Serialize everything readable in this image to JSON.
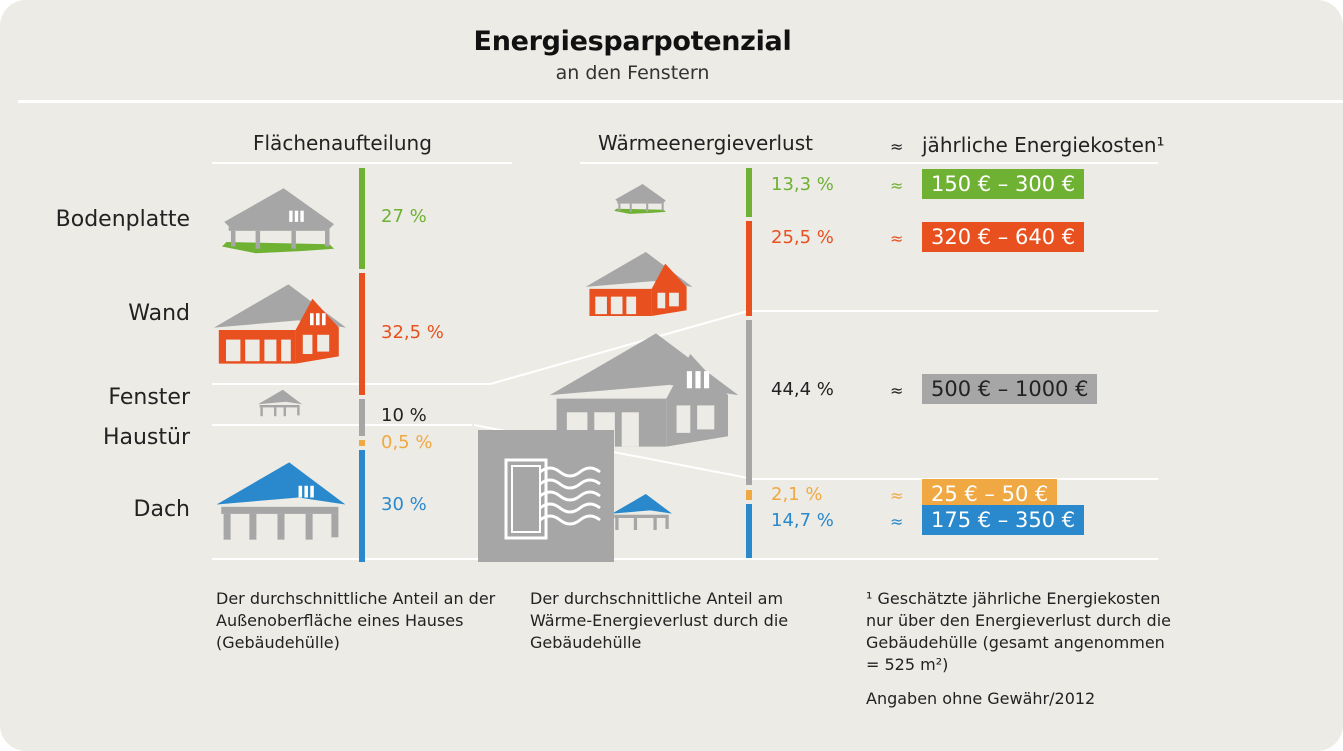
{
  "title": "Energiesparpotenzial",
  "subtitle": "an den Fenstern",
  "headers": {
    "area": "Flächenaufteilung",
    "loss": "Wärmeenergieverlust",
    "approx": "≈",
    "cost": "jährliche Energiekosten¹"
  },
  "colors": {
    "Bodenplatte": "#6fb133",
    "Wand": "#e8501f",
    "Fenster": "#a6a6a6",
    "Haustür": "#f0a843",
    "Dach": "#2989cc"
  },
  "chart_data": {
    "type": "bar",
    "categories": [
      "Bodenplatte",
      "Wand",
      "Fenster",
      "Haustür",
      "Dach"
    ],
    "series": [
      {
        "name": "Flächenaufteilung",
        "values": [
          27,
          32.5,
          10,
          0.5,
          30
        ],
        "labels": [
          "27 %",
          "32,5 %",
          "10 %",
          "0,5 %",
          "30 %"
        ]
      },
      {
        "name": "Wärmeenergieverlust",
        "values": [
          13.3,
          25.5,
          44.4,
          2.1,
          14.7
        ],
        "labels": [
          "13,3 %",
          "25,5 %",
          "44,4 %",
          "2,1 %",
          "14,7 %"
        ]
      }
    ],
    "loss_order": [
      "Bodenplatte",
      "Wand",
      "Fenster",
      "Haustür",
      "Dach"
    ],
    "costs": {
      "Bodenplatte": "150 € – 300 €",
      "Wand": "320 € – 640 €",
      "Fenster": "500 € – 1000 €",
      "Haustür": "25 € – 50 €",
      "Dach": "175 € – 350 €"
    },
    "unit": "%"
  },
  "notes": {
    "area": "Der durchschnittliche Anteil an der Außenoberfläche eines Hauses (Gebäudehülle)",
    "loss": "Der durchschnittliche Anteil am Wärme-Energieverlust durch die Gebäudehülle",
    "cost_lines": [
      "¹ Geschätzte jährliche Energiekosten",
      "nur über den Energieverlust durch die",
      "Gebäudehülle (gesamt angenommen",
      "= 525 m²)"
    ],
    "source": "Angaben ohne Gewähr/2012"
  }
}
